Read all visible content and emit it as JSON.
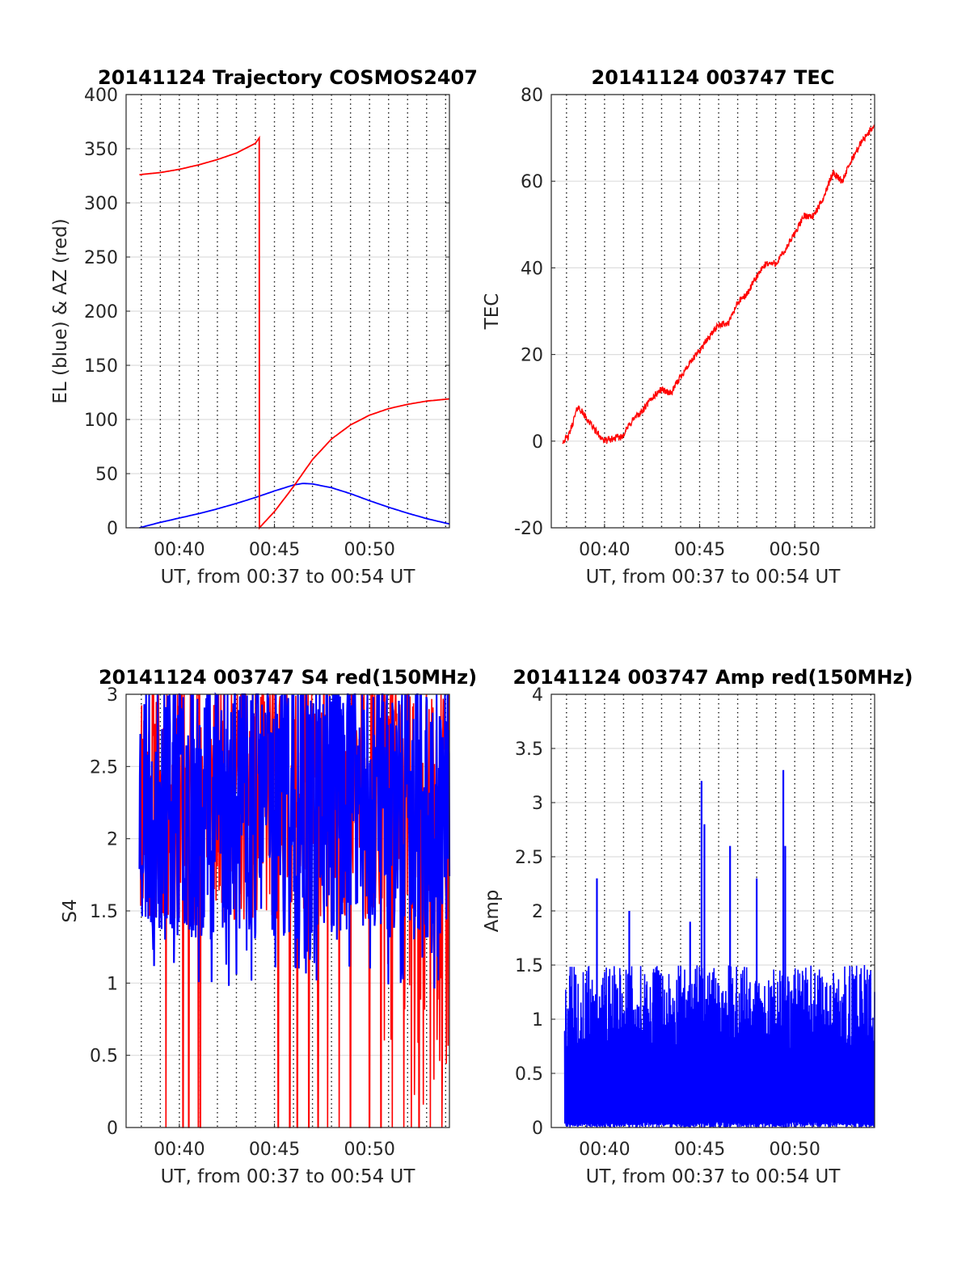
{
  "chart_data": [
    {
      "type": "line",
      "title": "20141124 Trajectory COSMOS2407",
      "xlabel": "UT, from 00:37 to 00:54 UT",
      "ylabel": "EL (blue) & AZ (red)",
      "xlim_minutes": [
        37.2,
        54.2
      ],
      "ylim": [
        0,
        400
      ],
      "xticks": [
        "00:40",
        "00:45",
        "00:50"
      ],
      "yticks": [
        "0",
        "50",
        "100",
        "150",
        "200",
        "250",
        "300",
        "350",
        "400"
      ],
      "grid": true,
      "series": [
        {
          "color": "#0000ff",
          "x": [
            37.9,
            39,
            40,
            41,
            42,
            43,
            44,
            45,
            46,
            46.5,
            47,
            48,
            49,
            50,
            51,
            52,
            53,
            54.2
          ],
          "y": [
            0,
            5,
            9,
            13,
            17.5,
            22.5,
            28,
            34,
            39.5,
            41,
            40.5,
            37,
            31.5,
            25,
            19,
            13.5,
            8.5,
            3.5
          ]
        },
        {
          "color": "#ff0000",
          "x": [
            37.9,
            39,
            40,
            41,
            42,
            43,
            44,
            44.2,
            44.21,
            45,
            46,
            47,
            48,
            49,
            50,
            51,
            52,
            53,
            54.2
          ],
          "y": [
            326,
            328,
            331,
            335,
            340,
            346,
            355,
            360,
            0,
            15,
            38,
            63,
            82,
            95,
            104,
            110,
            114,
            117,
            119
          ]
        }
      ]
    },
    {
      "type": "line",
      "title": "20141124 003747 TEC",
      "xlabel": "UT, from 00:37 to 00:54 UT",
      "ylabel": "TEC",
      "xlim_minutes": [
        37.2,
        54.2
      ],
      "ylim": [
        -20,
        80
      ],
      "xticks": [
        "00:40",
        "00:45",
        "00:50"
      ],
      "yticks": [
        "-20",
        "0",
        "20",
        "40",
        "60",
        "80"
      ],
      "grid": true,
      "series": [
        {
          "color": "#ff0000",
          "x": [
            37.8,
            38.1,
            38.6,
            39.1,
            39.6,
            40.0,
            40.4,
            40.9,
            41.5,
            42.0,
            42.5,
            43.0,
            43.5,
            44.0,
            44.5,
            45.0,
            45.5,
            46.0,
            46.5,
            47.0,
            47.5,
            48.0,
            48.5,
            49.0,
            49.5,
            50.0,
            50.5,
            51.0,
            51.5,
            52.0,
            52.5,
            53.0,
            53.5,
            54.2
          ],
          "y": [
            0,
            1,
            8,
            5,
            2,
            0,
            0.5,
            1,
            5,
            7,
            10,
            12,
            11,
            15,
            18,
            21,
            24,
            27,
            27,
            32,
            34,
            38,
            41,
            41,
            44,
            48,
            52,
            52,
            56,
            62,
            60,
            65,
            69,
            73
          ]
        }
      ]
    },
    {
      "type": "line",
      "title": "20141124 003747 S4 red(150MHz)",
      "xlabel": "UT, from 00:37 to 00:54 UT",
      "ylabel": "S4",
      "xlim_minutes": [
        37.2,
        54.2
      ],
      "ylim": [
        0,
        3
      ],
      "xticks": [
        "00:40",
        "00:45",
        "00:50"
      ],
      "yticks": [
        "0",
        "0.5",
        "1",
        "1.5",
        "2",
        "2.5",
        "3"
      ],
      "grid": true,
      "series": [
        {
          "color": "#ff0000",
          "x_range_minutes": [
            37.9,
            54.2
          ],
          "value_range": [
            0,
            3
          ],
          "dropouts_to_zero_minutes": [
            39.3,
            40.2,
            40.5,
            41.0,
            41.1,
            45.2,
            45.8,
            46.2,
            46.8,
            47.3,
            47.8,
            48.4,
            49.0,
            50.0,
            50.6,
            51.2,
            51.8,
            52.2,
            52.6,
            53.2,
            53.8
          ]
        },
        {
          "color": "#0000ff",
          "x_range_minutes": [
            37.9,
            54.2
          ],
          "typical_range": [
            1.3,
            3
          ],
          "min_value": 0.95
        }
      ]
    },
    {
      "type": "line",
      "title": "20141124 003747 Amp red(150MHz)",
      "xlabel": "UT, from 00:37 to 00:54 UT",
      "ylabel": "Amp",
      "xlim_minutes": [
        37.2,
        54.2
      ],
      "ylim": [
        0,
        4
      ],
      "xticks": [
        "00:40",
        "00:45",
        "00:50"
      ],
      "yticks": [
        "0",
        "0.5",
        "1",
        "1.5",
        "2",
        "2.5",
        "3",
        "3.5",
        "4"
      ],
      "grid": true,
      "series": [
        {
          "color": "#0000ff",
          "x_range_minutes": [
            37.9,
            54.2
          ],
          "typical_peak": 1.3,
          "spikes": [
            {
              "x": 39.6,
              "y": 2.3
            },
            {
              "x": 41.3,
              "y": 2.0
            },
            {
              "x": 44.5,
              "y": 1.9
            },
            {
              "x": 45.1,
              "y": 3.2
            },
            {
              "x": 45.25,
              "y": 2.8
            },
            {
              "x": 46.6,
              "y": 2.6
            },
            {
              "x": 48.0,
              "y": 2.3
            },
            {
              "x": 49.4,
              "y": 3.3
            },
            {
              "x": 49.5,
              "y": 2.6
            }
          ]
        }
      ]
    }
  ]
}
